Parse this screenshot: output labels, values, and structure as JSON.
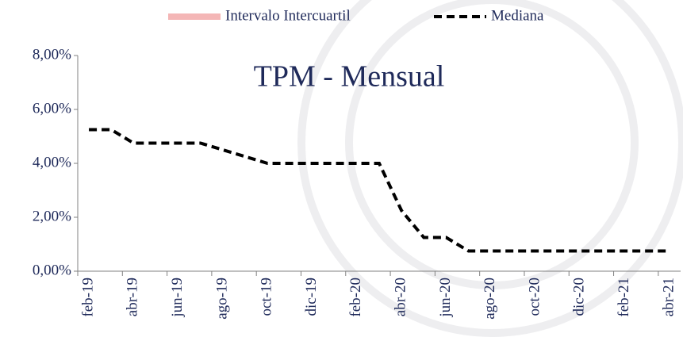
{
  "chart_data": {
    "type": "line",
    "title": "TPM - Mensual",
    "categories": [
      "feb-19",
      null,
      "abr-19",
      null,
      "jun-19",
      null,
      "ago-19",
      null,
      "oct-19",
      null,
      "dic-19",
      null,
      "feb-20",
      null,
      "abr-20",
      null,
      "jun-20",
      null,
      "ago-20",
      null,
      "oct-20",
      null,
      "dic-20",
      null,
      "feb-21",
      null,
      "abr-21"
    ],
    "series": [
      {
        "name": "Mediana",
        "color": "#000000",
        "dashed": true,
        "values": [
          5.25,
          5.25,
          4.75,
          4.75,
          4.75,
          4.75,
          4.5,
          4.25,
          4.0,
          4.0,
          4.0,
          4.0,
          4.0,
          4.0,
          2.25,
          1.25,
          1.25,
          0.75,
          0.75,
          0.75,
          0.75,
          0.75,
          0.75,
          0.75,
          0.75,
          0.75,
          0.75
        ]
      }
    ],
    "legend": [
      {
        "name": "Intervalo Intercuartil",
        "color": "#f4b6b6"
      },
      {
        "name": "Mediana",
        "color": "#000000"
      }
    ],
    "ylim": [
      0,
      8
    ],
    "yticks": [
      {
        "value": 0,
        "label": "0,00%"
      },
      {
        "value": 2,
        "label": "2,00%"
      },
      {
        "value": 4,
        "label": "4,00%"
      },
      {
        "value": 6,
        "label": "6,00%"
      },
      {
        "value": 8,
        "label": "8,00%"
      }
    ]
  }
}
